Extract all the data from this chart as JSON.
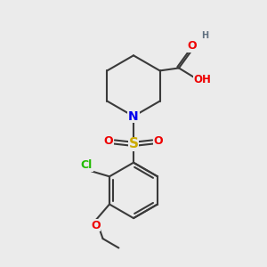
{
  "bg_color": "#ebebeb",
  "bond_color": "#3a3a3a",
  "bond_width": 1.5,
  "atom_colors": {
    "N": "#0000ee",
    "O": "#ee0000",
    "S": "#ccaa00",
    "Cl": "#22bb00",
    "H": "#607080"
  },
  "font_size": 9,
  "fig_size": [
    3.0,
    3.0
  ],
  "dpi": 100,
  "xlim": [
    0,
    10
  ],
  "ylim": [
    0,
    10
  ]
}
